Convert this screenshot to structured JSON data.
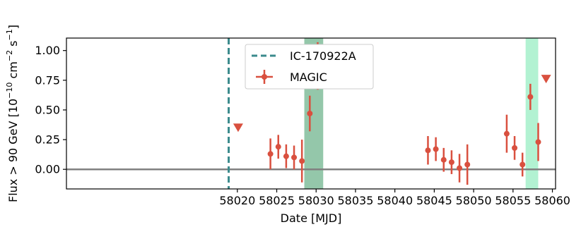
{
  "chart_data": {
    "type": "scatter",
    "xlabel": "Date [MJD]",
    "ylabel": {
      "prefix": "Flux > 90 GeV [10",
      "exp1": "−10",
      "mid": " cm",
      "exp2": "−2",
      "mid2": " s",
      "exp3": "−1",
      "suffix": "]"
    },
    "xlim": [
      57998.3,
      58060.4
    ],
    "ylim": [
      -0.165,
      1.105
    ],
    "x_ticks": [
      58020,
      58025,
      58030,
      58035,
      58040,
      58045,
      58050,
      58055,
      58060
    ],
    "y_ticks": [
      0.0,
      0.25,
      0.5,
      0.75,
      1.0
    ],
    "y_tick_labels": [
      "0.00",
      "0.25",
      "0.50",
      "0.75",
      "1.00"
    ],
    "grid": false,
    "legend_position": "top-center",
    "reference_line": {
      "y": 0.0,
      "color": "#808080"
    },
    "event_line": {
      "name": "IC-170922A",
      "x": 58018.9,
      "color": "#3a8a8c",
      "style": "dashed"
    },
    "shaded_regions": [
      {
        "x0": 58028.5,
        "x1": 58030.9,
        "color": "#94c7aa"
      },
      {
        "x0": 58056.6,
        "x1": 58058.2,
        "color": "#b2f2d2"
      }
    ],
    "series": [
      {
        "name": "MAGIC",
        "color": "#d9503f",
        "points": [
          {
            "x": 58024.2,
            "y": 0.13,
            "err": 0.13
          },
          {
            "x": 58025.2,
            "y": 0.19,
            "err": 0.1
          },
          {
            "x": 58026.2,
            "y": 0.11,
            "err": 0.1
          },
          {
            "x": 58027.2,
            "y": 0.1,
            "err": 0.1
          },
          {
            "x": 58028.2,
            "y": 0.07,
            "err": 0.18
          },
          {
            "x": 58029.2,
            "y": 0.47,
            "err": 0.15
          },
          {
            "x": 58030.2,
            "y": 0.87,
            "err": 0.2
          },
          {
            "x": 58044.2,
            "y": 0.16,
            "err": 0.12
          },
          {
            "x": 58045.2,
            "y": 0.17,
            "err": 0.1
          },
          {
            "x": 58046.2,
            "y": 0.08,
            "err": 0.1
          },
          {
            "x": 58047.2,
            "y": 0.06,
            "err": 0.1
          },
          {
            "x": 58048.2,
            "y": 0.01,
            "err": 0.12
          },
          {
            "x": 58049.2,
            "y": 0.04,
            "err": 0.17
          },
          {
            "x": 58054.2,
            "y": 0.3,
            "err": 0.16
          },
          {
            "x": 58055.2,
            "y": 0.18,
            "err": 0.1
          },
          {
            "x": 58056.2,
            "y": 0.04,
            "err": 0.1
          },
          {
            "x": 58057.2,
            "y": 0.61,
            "err": 0.11
          },
          {
            "x": 58058.2,
            "y": 0.23,
            "err": 0.16
          }
        ],
        "upper_limits": [
          {
            "x": 58020.1,
            "y": 0.35
          },
          {
            "x": 58059.2,
            "y": 0.76
          }
        ]
      }
    ]
  }
}
